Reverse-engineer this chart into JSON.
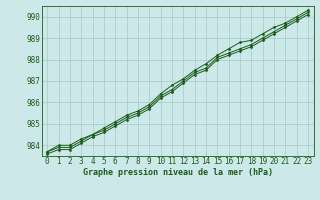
{
  "x": [
    0,
    1,
    2,
    3,
    4,
    5,
    6,
    7,
    8,
    9,
    10,
    11,
    12,
    13,
    14,
    15,
    16,
    17,
    18,
    19,
    20,
    21,
    22,
    23
  ],
  "line1": [
    983.7,
    983.9,
    983.9,
    984.2,
    984.5,
    984.7,
    985.0,
    985.3,
    985.5,
    985.8,
    986.3,
    986.6,
    987.0,
    987.4,
    987.6,
    988.1,
    988.3,
    988.5,
    988.7,
    989.0,
    989.3,
    989.6,
    989.9,
    990.2
  ],
  "line2": [
    983.7,
    984.0,
    984.0,
    984.3,
    984.5,
    984.8,
    985.1,
    985.4,
    985.6,
    985.9,
    986.4,
    986.8,
    987.1,
    987.5,
    987.8,
    988.2,
    988.5,
    988.8,
    988.9,
    989.2,
    989.5,
    989.7,
    990.0,
    990.3
  ],
  "line3": [
    983.6,
    983.8,
    983.8,
    984.1,
    984.4,
    984.6,
    984.9,
    985.2,
    985.4,
    985.7,
    986.2,
    986.5,
    986.9,
    987.3,
    987.5,
    988.0,
    988.2,
    988.4,
    988.6,
    988.9,
    989.2,
    989.5,
    989.8,
    990.1
  ],
  "line_color": "#1a5c1a",
  "bg_color": "#cce8e8",
  "grid_color": "#a8c8c8",
  "xlabel": "Graphe pression niveau de la mer (hPa)",
  "ylim": [
    983.5,
    990.5
  ],
  "yticks": [
    984,
    985,
    986,
    987,
    988,
    989,
    990
  ],
  "xtick_labels": [
    "0",
    "1",
    "2",
    "3",
    "4",
    "5",
    "6",
    "7",
    "8",
    "9",
    "10",
    "11",
    "12",
    "13",
    "14",
    "15",
    "16",
    "17",
    "18",
    "19",
    "20",
    "21",
    "22",
    "23"
  ],
  "marker": "D",
  "marker_size": 1.5,
  "line_width": 0.7,
  "tick_fontsize": 5.5,
  "xlabel_fontsize": 6.0
}
